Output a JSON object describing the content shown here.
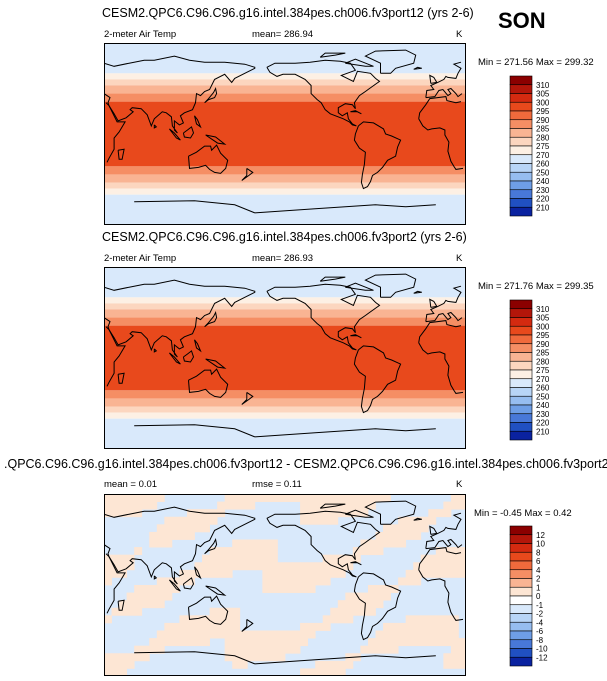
{
  "season": "SON",
  "units": "K",
  "panels": [
    {
      "title": "CESM2.QPC6.C96.C96.g16.intel.384pes.ch006.fv3port12 (yrs 2-6)",
      "variable": "2-meter Air Temp",
      "stat_left": "",
      "stat_mid": "mean= 286.94",
      "units": "K",
      "minmax": "Min = 271.56 Max = 299.32"
    },
    {
      "title": "CESM2.QPC6.C96.C96.g16.intel.384pes.ch006.fv3port2 (yrs 2-6)",
      "variable": "2-meter Air Temp",
      "stat_left": "",
      "stat_mid": "mean= 286.93",
      "units": "K",
      "minmax": "Min = 271.76 Max = 299.35"
    },
    {
      "title": ".QPC6.C96.C96.g16.intel.384pes.ch006.fv3port12 - CESM2.QPC6.C96.C96.g16.intel.384pes.ch006.fv3port2",
      "variable": "",
      "stat_left": "mean =  0.01",
      "stat_mid": "rmse =  0.11",
      "units": "K",
      "minmax": "Min = -0.45 Max =  0.42"
    }
  ],
  "chart_data": [
    {
      "type": "heatmap",
      "title": "CESM2.QPC6.C96.C96.g16.intel.384pes.ch006.fv3port12 (yrs 2-6)",
      "variable": "2-meter Air Temp",
      "units": "K",
      "mean": 286.94,
      "min": 271.56,
      "max": 299.32,
      "colorbar_levels": [
        "310",
        "305",
        "300",
        "295",
        "290",
        "285",
        "280",
        "275",
        "270",
        "260",
        "250",
        "240",
        "230",
        "220",
        "210"
      ],
      "colorbar_colors": [
        "#8b0000",
        "#b3160a",
        "#d42a10",
        "#e8491c",
        "#f06a3c",
        "#f58e64",
        "#f9b493",
        "#fcd6bf",
        "#fdf0e4",
        "#d9e9fb",
        "#b8d5f7",
        "#96bdf0",
        "#6e9ee6",
        "#4878d8",
        "#2050c2",
        "#0a22a0"
      ],
      "latitude_bands": [
        {
          "lat_from": 90,
          "lat_to": 60,
          "value_range": "270-275"
        },
        {
          "lat_from": 60,
          "lat_to": 54,
          "value_range": "275-280"
        },
        {
          "lat_from": 54,
          "lat_to": 48,
          "value_range": "280-285"
        },
        {
          "lat_from": 48,
          "lat_to": 40,
          "value_range": "285-290"
        },
        {
          "lat_from": 40,
          "lat_to": 32,
          "value_range": "290-295"
        },
        {
          "lat_from": 32,
          "lat_to": -32,
          "value_range": "295-300"
        },
        {
          "lat_from": -32,
          "lat_to": -40,
          "value_range": "290-295"
        },
        {
          "lat_from": -40,
          "lat_to": -48,
          "value_range": "285-290"
        },
        {
          "lat_from": -48,
          "lat_to": -54,
          "value_range": "280-285"
        },
        {
          "lat_from": -54,
          "lat_to": -60,
          "value_range": "275-280"
        },
        {
          "lat_from": -60,
          "lat_to": -90,
          "value_range": "270-275"
        }
      ]
    },
    {
      "type": "heatmap",
      "title": "CESM2.QPC6.C96.C96.g16.intel.384pes.ch006.fv3port2 (yrs 2-6)",
      "variable": "2-meter Air Temp",
      "units": "K",
      "mean": 286.93,
      "min": 271.76,
      "max": 299.35,
      "colorbar_levels": [
        "310",
        "305",
        "300",
        "295",
        "290",
        "285",
        "280",
        "275",
        "270",
        "260",
        "250",
        "240",
        "230",
        "220",
        "210"
      ],
      "colorbar_colors": [
        "#8b0000",
        "#b3160a",
        "#d42a10",
        "#e8491c",
        "#f06a3c",
        "#f58e64",
        "#f9b493",
        "#fcd6bf",
        "#fdf0e4",
        "#d9e9fb",
        "#b8d5f7",
        "#96bdf0",
        "#6e9ee6",
        "#4878d8",
        "#2050c2",
        "#0a22a0"
      ],
      "latitude_bands": [
        {
          "lat_from": 90,
          "lat_to": 60,
          "value_range": "270-275"
        },
        {
          "lat_from": 60,
          "lat_to": 54,
          "value_range": "275-280"
        },
        {
          "lat_from": 54,
          "lat_to": 48,
          "value_range": "280-285"
        },
        {
          "lat_from": 48,
          "lat_to": 40,
          "value_range": "285-290"
        },
        {
          "lat_from": 40,
          "lat_to": 32,
          "value_range": "290-295"
        },
        {
          "lat_from": 32,
          "lat_to": -32,
          "value_range": "295-300"
        },
        {
          "lat_from": -32,
          "lat_to": -40,
          "value_range": "290-295"
        },
        {
          "lat_from": -40,
          "lat_to": -48,
          "value_range": "285-290"
        },
        {
          "lat_from": -48,
          "lat_to": -54,
          "value_range": "280-285"
        },
        {
          "lat_from": -54,
          "lat_to": -60,
          "value_range": "275-280"
        },
        {
          "lat_from": -60,
          "lat_to": -90,
          "value_range": "270-275"
        }
      ]
    },
    {
      "type": "heatmap",
      "title": ".QPC6.C96.C96.g16.intel.384pes.ch006.fv3port12 - CESM2.QPC6.C96.C96.g16.intel.384pes.ch006.fv3port2",
      "units": "K",
      "mean": 0.01,
      "rmse": 0.11,
      "min": -0.45,
      "max": 0.42,
      "colorbar_levels": [
        "12",
        "10",
        "8",
        "6",
        "4",
        "2",
        "1",
        "0",
        "-1",
        "-2",
        "-4",
        "-6",
        "-8",
        "-10",
        "-12"
      ],
      "colorbar_colors": [
        "#8b0000",
        "#b3160a",
        "#d42a10",
        "#e8491c",
        "#f06a3c",
        "#f58e64",
        "#f9b493",
        "#fde6d4",
        "#ffffff",
        "#d9e9fb",
        "#b8d5f7",
        "#96bdf0",
        "#6e9ee6",
        "#4878d8",
        "#2050c2",
        "#0a22a0"
      ],
      "field_colors": {
        "positive_0_1": "#fde6d4",
        "negative_-1_0": "#d9e9fb"
      }
    }
  ]
}
